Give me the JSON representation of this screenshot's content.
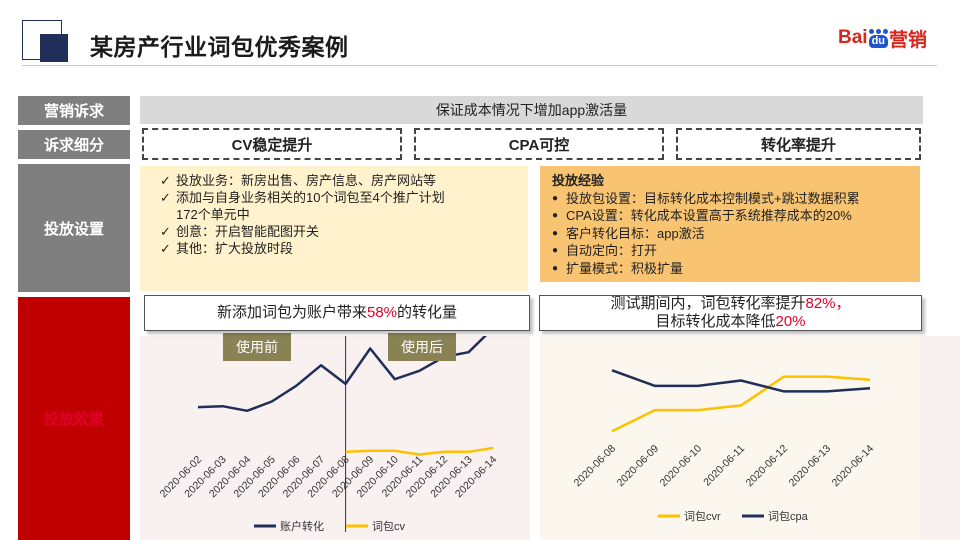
{
  "header": {
    "title": "某房产行业词包优秀案例",
    "brand_bai": "Bai",
    "brand_du": "du",
    "brand_suffix": "营销"
  },
  "labels": {
    "appeal": "营销诉求",
    "detail": "诉求细分",
    "setup": "投放设置",
    "effect": "投放效果"
  },
  "appeal_text": "保证成本情况下增加app激活量",
  "segments": [
    "CV稳定提升",
    "CPA可控",
    "转化率提升"
  ],
  "setup_left": {
    "items": [
      {
        "mark": "✓",
        "text": "投放业务：新房出售、房产信息、房产网站等"
      },
      {
        "mark": "✓",
        "text": "添加与自身业务相关的10个词包至4个推广计划"
      },
      {
        "mark": "",
        "text": "172个单元中"
      },
      {
        "mark": "✓",
        "text": "创意：开启智能配图开关"
      },
      {
        "mark": "✓",
        "text": "其他：扩大投放时段"
      }
    ]
  },
  "setup_right": {
    "heading": "投放经验",
    "items": [
      {
        "mark": "●",
        "text": "投放包设置：目标转化成本控制模式+跳过数据积累"
      },
      {
        "mark": "●",
        "text": "CPA设置：转化成本设置高于系统推荐成本的20%"
      },
      {
        "mark": "●",
        "text": "客户转化目标：app激活"
      },
      {
        "mark": "●",
        "text": "自动定向：打开"
      },
      {
        "mark": "●",
        "text": "扩量模式：积极扩量"
      }
    ]
  },
  "callout_left": {
    "pre": "新添加词包为账户带来",
    "pct": "58%",
    "post": "的转化量"
  },
  "callout_right": {
    "line1_pre": "测试期间内，词包转化率提升",
    "line1_pct": "82%，",
    "line2_pre": "目标转化成本降低",
    "line2_pct": "20%"
  },
  "tags": {
    "before": "使用前",
    "after": "使用后"
  },
  "colors": {
    "navy": "#1f2f5a",
    "gold": "#ffc000",
    "label_gray": "#7f7f7f",
    "label_red": "#c00000",
    "accent_red": "#e0002a"
  },
  "chart_data": [
    {
      "type": "line",
      "categories": [
        "2020-06-02",
        "2020-06-03",
        "2020-06-04",
        "2020-06-05",
        "2020-06-06",
        "2020-06-07",
        "2020-06-08",
        "2020-06-09",
        "2020-06-10",
        "2020-06-11",
        "2020-06-12",
        "2020-06-13",
        "2020-06-14"
      ],
      "series": [
        {
          "name": "账户转化",
          "color": "#1f2f5a",
          "values": [
            38,
            39,
            34,
            44,
            61,
            83,
            63,
            101,
            68,
            77,
            92,
            97,
            123
          ]
        },
        {
          "name": "词包cv",
          "color": "#ffc000",
          "values": [
            null,
            null,
            null,
            null,
            null,
            null,
            -10,
            -9,
            -9,
            -13,
            -10,
            -10,
            -6
          ]
        }
      ],
      "ylim": [
        -35,
        135
      ],
      "legend": "bottom",
      "grid": false
    },
    {
      "type": "line",
      "categories": [
        "2020-06-08",
        "2020-06-09",
        "2020-06-10",
        "2020-06-11",
        "2020-06-12",
        "2020-06-13",
        "2020-06-14"
      ],
      "series": [
        {
          "name": "词包cvr",
          "color": "#ffc000",
          "values": [
            4,
            31,
            31,
            37,
            74,
            74,
            70
          ]
        },
        {
          "name": "词包cpa",
          "color": "#1f2f5a",
          "values": [
            82,
            62,
            62,
            69,
            55,
            55,
            59
          ]
        }
      ],
      "ylim": [
        -15,
        95
      ],
      "legend": "bottom",
      "grid": false
    }
  ]
}
